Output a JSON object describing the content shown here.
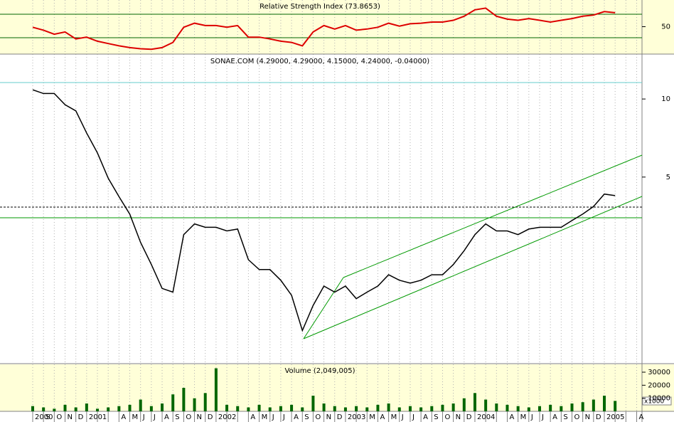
{
  "chart_data": [
    {
      "type": "line",
      "title": "Relative Strength Index (73.8653)",
      "color": "#dd0000",
      "values": [
        49,
        44,
        37,
        41,
        29,
        32,
        25,
        21,
        17,
        14,
        12,
        11,
        14,
        23,
        49,
        56,
        52,
        52,
        49,
        52,
        32,
        32,
        29,
        25,
        23,
        17,
        41,
        52,
        46,
        52,
        44,
        46,
        49,
        56,
        51,
        55,
        56,
        58,
        58,
        61,
        68,
        79,
        82,
        68,
        63,
        61,
        64,
        61,
        58,
        61,
        64,
        68,
        70,
        76,
        74,
        null,
        null
      ],
      "ylim": [
        5.3,
        93.5
      ],
      "yticks": [
        50
      ]
    },
    {
      "type": "line",
      "title": "SONAE.COM (4.29000, 4.29000, 4.15000, 4.24000, -0.04000)",
      "color": "#000000",
      "log_scale": true,
      "values": [
        10.85,
        10.5,
        10.5,
        9.5,
        9.0,
        7.4,
        6.2,
        4.95,
        4.2,
        3.6,
        2.8,
        2.3,
        1.86,
        1.8,
        3.0,
        3.3,
        3.2,
        3.2,
        3.1,
        3.15,
        2.4,
        2.2,
        2.2,
        2.0,
        1.75,
        1.28,
        1.6,
        1.9,
        1.8,
        1.9,
        1.7,
        1.8,
        1.9,
        2.1,
        2.0,
        1.95,
        2.0,
        2.1,
        2.1,
        2.3,
        2.6,
        3.0,
        3.3,
        3.1,
        3.1,
        3.0,
        3.15,
        3.2,
        3.2,
        3.2,
        3.4,
        3.6,
        3.85,
        4.3,
        4.24,
        null,
        null
      ],
      "ylim": [
        0.96,
        14.9
      ],
      "yticks": [
        5,
        10
      ]
    },
    {
      "type": "bar",
      "title": "Volume (2,049,005)",
      "color": "#006600",
      "y_label": "x1000",
      "categories": [
        "2000",
        "S",
        "O",
        "N",
        "D",
        "2001",
        null,
        null,
        "A",
        "M",
        "J",
        "J",
        "A",
        "S",
        "O",
        "N",
        "D",
        "2002",
        null,
        null,
        "A",
        "M",
        "J",
        "J",
        "A",
        "S",
        "O",
        "N",
        "D",
        "2003",
        null,
        "M",
        "A",
        "M",
        "J",
        "J",
        "A",
        "S",
        "O",
        "N",
        "D",
        "2004",
        null,
        null,
        "A",
        "M",
        "J",
        "J",
        "A",
        "S",
        "O",
        "N",
        "D",
        "2005",
        null,
        null,
        "A"
      ],
      "values": [
        4000,
        3000,
        2000,
        5000,
        3000,
        6000,
        2000,
        3000,
        4000,
        5000,
        9000,
        4000,
        6000,
        13000,
        18000,
        10000,
        14000,
        33000,
        5000,
        4000,
        3000,
        5000,
        3000,
        4000,
        5000,
        3000,
        12000,
        6000,
        4000,
        3000,
        4000,
        3000,
        5000,
        6000,
        3000,
        4000,
        3000,
        4000,
        5000,
        6000,
        10000,
        14000,
        9000,
        6000,
        5000,
        4000,
        3000,
        4000,
        5000,
        4000,
        6000,
        7000,
        9000,
        12000,
        8000,
        null,
        null
      ],
      "ylim": [
        0,
        36000
      ],
      "yticks": [
        10000,
        20000,
        30000
      ]
    }
  ]
}
